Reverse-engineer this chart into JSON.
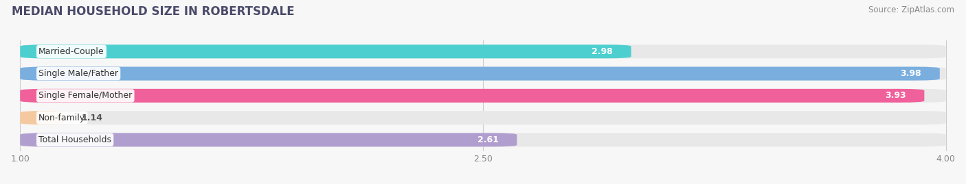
{
  "title": "MEDIAN HOUSEHOLD SIZE IN ROBERTSDALE",
  "source": "Source: ZipAtlas.com",
  "categories": [
    "Married-Couple",
    "Single Male/Father",
    "Single Female/Mother",
    "Non-family",
    "Total Households"
  ],
  "values": [
    2.98,
    3.98,
    3.93,
    1.14,
    2.61
  ],
  "bar_colors": [
    "#4ecfcf",
    "#7aaedf",
    "#f0609a",
    "#f5c9a0",
    "#b09ece"
  ],
  "bg_color": "#ebebeb",
  "xlim_data_min": 1.0,
  "xlim_data_max": 4.0,
  "xticks": [
    1.0,
    2.5,
    4.0
  ],
  "xtick_labels": [
    "1.00",
    "2.50",
    "4.00"
  ],
  "title_fontsize": 12,
  "source_fontsize": 8.5,
  "label_fontsize": 9,
  "value_fontsize": 9,
  "bar_height": 0.62,
  "bar_gap": 0.18,
  "background_color": "#f7f7f7"
}
